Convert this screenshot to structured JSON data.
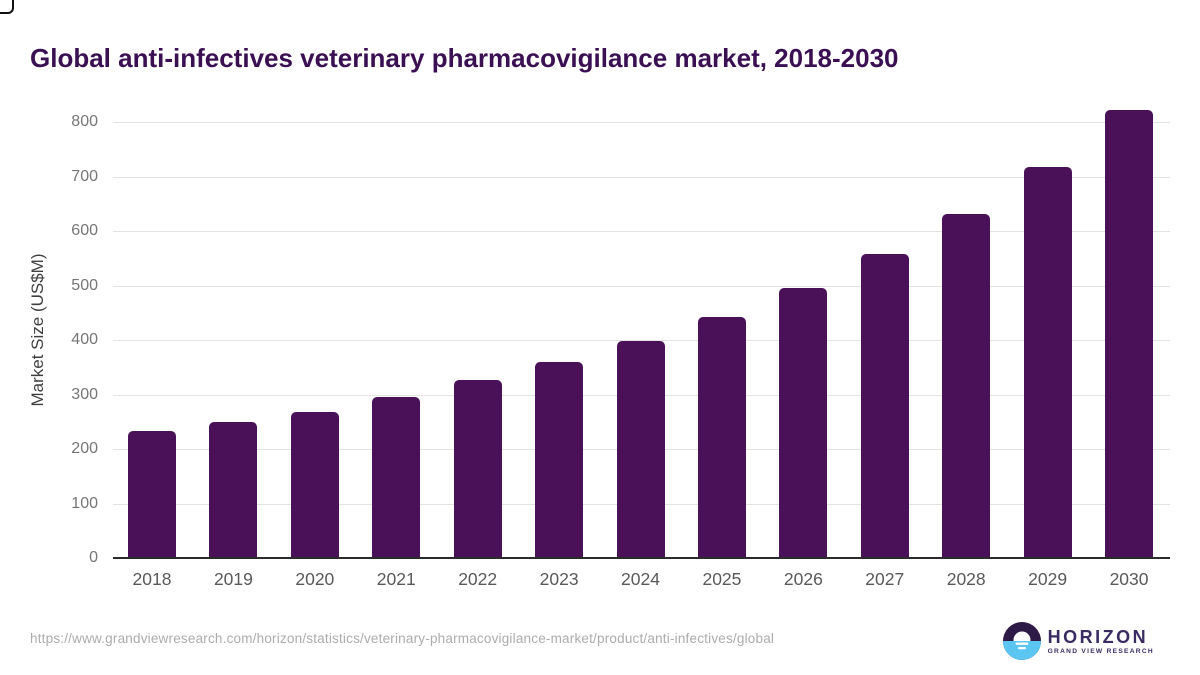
{
  "page": {
    "title": "Global anti-infectives veterinary pharmacovigilance market, 2018-2030"
  },
  "chart_data": {
    "type": "bar",
    "title": "Global anti-infectives veterinary pharmacovigilance market, 2018-2030",
    "categories": [
      "2018",
      "2019",
      "2020",
      "2021",
      "2022",
      "2023",
      "2024",
      "2025",
      "2026",
      "2027",
      "2028",
      "2029",
      "2030"
    ],
    "values": [
      231,
      248,
      267,
      293,
      325,
      357,
      396,
      440,
      493,
      556,
      629,
      715,
      820
    ],
    "xlabel": "",
    "ylabel": "Market Size (US$M)",
    "ylim": [
      0,
      800
    ],
    "ytick_interval": 100,
    "yticks": [
      0,
      100,
      200,
      300,
      400,
      500,
      600,
      700,
      800
    ],
    "grid": true,
    "legend": "none",
    "bar_color": "#4a1159"
  },
  "footer": {
    "source_url": "https://www.grandviewresearch.com/horizon/statistics/veterinary-pharmacovigilance-market/product/anti-infectives/global",
    "logo": {
      "brand": "HORIZON",
      "sub_brand": "GRAND VIEW RESEARCH"
    }
  },
  "colors": {
    "title_text": "#3a1053",
    "bar": "#4a1159",
    "gridline": "#e3e3e3",
    "axis_line": "#2b2b2b",
    "y_tick_label": "#767676",
    "x_tick_label": "#58595b",
    "y_axis_title": "#3f3f3f",
    "footer_url": "#acacac",
    "logo_dark": "#2e1a47",
    "logo_blue": "#5bc6f2",
    "logo_text": "#3a2b63"
  }
}
